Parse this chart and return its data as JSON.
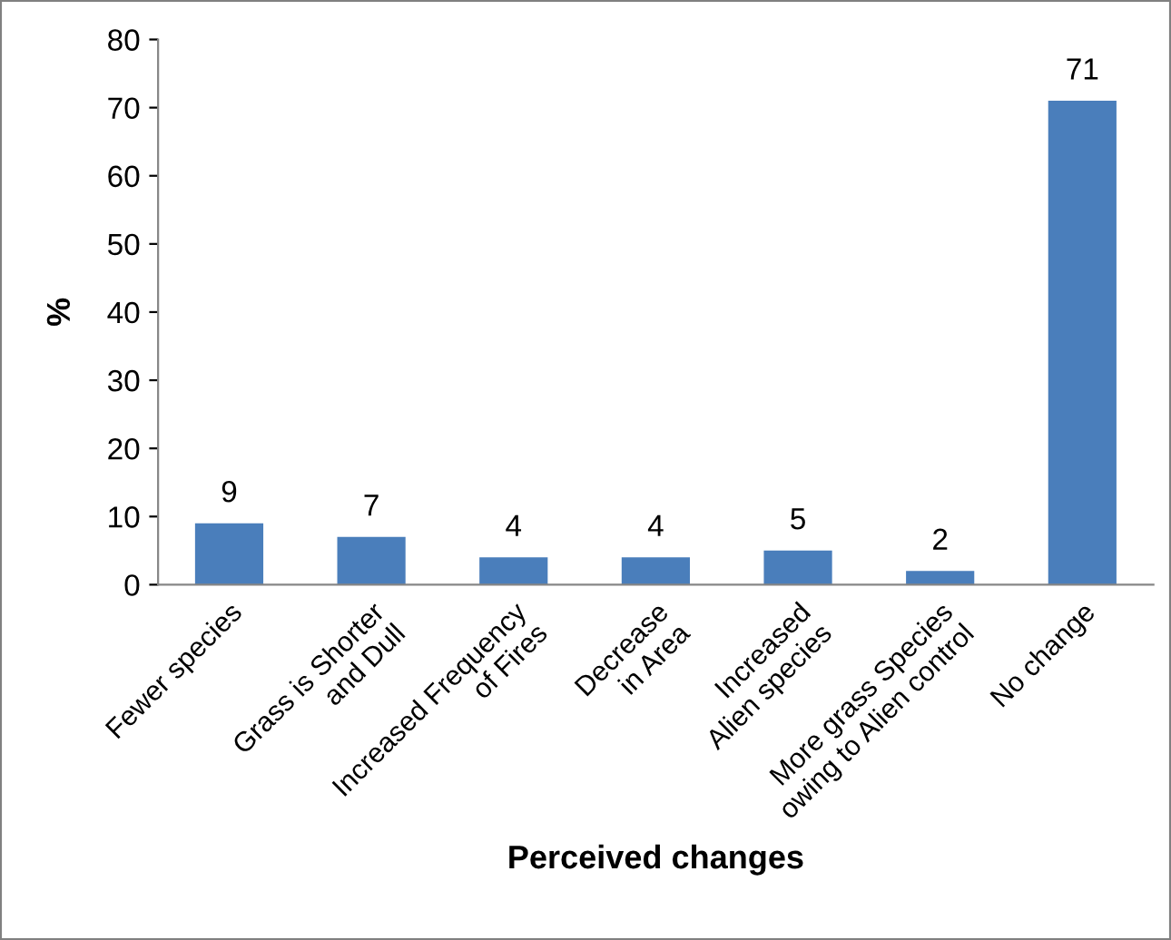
{
  "chart_data": {
    "type": "bar",
    "categories": [
      "Fewer species",
      "Grass is Shorter\nand Dull",
      "Increased Frequency\nof Fires",
      "Decrease\nin Area",
      "Increased\nAlien species",
      "More grass Species\nowing to Alien control",
      "No change"
    ],
    "values": [
      9,
      7,
      4,
      4,
      5,
      2,
      71
    ],
    "color": "#4a7ebb",
    "xlabel": "Perceived changes",
    "ylabel": "%",
    "ylim": [
      0,
      80
    ],
    "yticks": [
      0,
      10,
      20,
      30,
      40,
      50,
      60,
      70,
      80
    ],
    "data_labels": true,
    "grid": false
  }
}
